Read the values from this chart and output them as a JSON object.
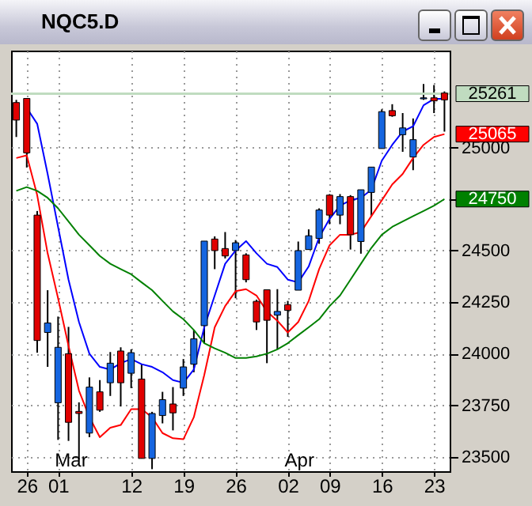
{
  "chart_data": {
    "type": "candlestick",
    "title": "NQC5.D",
    "categories": [
      null,
      "26",
      null,
      null,
      "01",
      null,
      null,
      null,
      null,
      null,
      null,
      "12",
      null,
      null,
      null,
      null,
      "19",
      null,
      null,
      null,
      null,
      "26",
      null,
      null,
      null,
      null,
      "02",
      null,
      null,
      null,
      "09",
      null,
      null,
      null,
      null,
      "16",
      null,
      null,
      null,
      null,
      "23",
      null
    ],
    "ohlc": [
      [
        25218,
        25231,
        25051,
        25133
      ],
      [
        25238,
        25238,
        24903,
        24974
      ],
      [
        24672,
        24692,
        24005,
        24064
      ],
      [
        24103,
        24308,
        23936,
        24149
      ],
      [
        23762,
        24180,
        23582,
        24031
      ],
      [
        24000,
        24130,
        23577,
        23667
      ],
      [
        23720,
        23764,
        23487,
        23710
      ],
      [
        23615,
        23885,
        23595,
        23838
      ],
      [
        23815,
        23872,
        23718,
        23726
      ],
      [
        23859,
        24008,
        23795,
        23954
      ],
      [
        24013,
        24031,
        23744,
        23859
      ],
      [
        23905,
        24021,
        23833,
        24005
      ],
      [
        23877,
        23949,
        23492,
        23492
      ],
      [
        23492,
        23718,
        23440,
        23710
      ],
      [
        23700,
        23815,
        23662,
        23777
      ],
      [
        23756,
        23838,
        23628,
        23713
      ],
      [
        23833,
        23974,
        23795,
        23936
      ],
      [
        23949,
        24115,
        23910,
        24072
      ],
      [
        24136,
        24546,
        24051,
        24546
      ],
      [
        24556,
        24569,
        24410,
        24500
      ],
      [
        24510,
        24590,
        24462,
        24474
      ],
      [
        24500,
        24551,
        24269,
        24538
      ],
      [
        24479,
        24487,
        24346,
        24359
      ],
      [
        24254,
        24262,
        24115,
        24154
      ],
      [
        24310,
        24310,
        23954,
        24162
      ],
      [
        24187,
        24313,
        24021,
        24205
      ],
      [
        24238,
        24256,
        24082,
        24210
      ],
      [
        24308,
        24544,
        24308,
        24500
      ],
      [
        24505,
        24603,
        24505,
        24572
      ],
      [
        24559,
        24705,
        24533,
        24697
      ],
      [
        24769,
        24774,
        24628,
        24672
      ],
      [
        24672,
        24774,
        24628,
        24762
      ],
      [
        24762,
        24769,
        24505,
        24577
      ],
      [
        24544,
        24795,
        24485,
        24795
      ],
      [
        24782,
        24905,
        24667,
        24905
      ],
      [
        24995,
        25185,
        24995,
        25174
      ],
      [
        25179,
        25210,
        25149,
        25154
      ],
      [
        25062,
        25167,
        24979,
        25095
      ],
      [
        24954,
        25141,
        24890,
        25038
      ],
      [
        25236,
        25308,
        25231,
        25241
      ],
      [
        25241,
        25303,
        25167,
        25226
      ],
      [
        25264,
        25272,
        25077,
        25231
      ]
    ],
    "series": [
      {
        "type": "line",
        "color": "#0000ff",
        "values": [
          null,
          25192,
          25115,
          24872,
          24615,
          24359,
          24154,
          24000,
          23936,
          23923,
          23954,
          23974,
          23949,
          23936,
          23910,
          23872,
          23859,
          23923,
          24128,
          24282,
          24436,
          24500,
          24546,
          24487,
          24436,
          24420,
          24359,
          24346,
          24423,
          24564,
          24654,
          24718,
          24744,
          24756,
          24795,
          24936,
          25013,
          25077,
          25103,
          25205,
          25236,
          25236
        ]
      },
      {
        "type": "line",
        "color": "#ff0000",
        "values": [
          24949,
          24962,
          24769,
          24487,
          24269,
          24038,
          23821,
          23692,
          23595,
          23641,
          23654,
          23731,
          23731,
          23692,
          23615,
          23590,
          23585,
          23692,
          23897,
          24128,
          24231,
          24303,
          24313,
          24282,
          24205,
          24160,
          24103,
          24154,
          24256,
          24410,
          24526,
          24577,
          24577,
          24590,
          24667,
          24744,
          24821,
          24872,
          24949,
          25013,
          25051,
          25065
        ],
        "value_labels": [
          null,
          null,
          null,
          null,
          null,
          null,
          null,
          null,
          null,
          null,
          null,
          null,
          null,
          null,
          null,
          null,
          null,
          null,
          null,
          null,
          null,
          null,
          null,
          null,
          null,
          null,
          null,
          null,
          null,
          null,
          null,
          null,
          null,
          null,
          null,
          null,
          null,
          null,
          null,
          null,
          null,
          "25065"
        ]
      },
      {
        "type": "line",
        "color": "#008000",
        "values": [
          24790,
          24808,
          24790,
          24756,
          24705,
          24641,
          24577,
          24526,
          24474,
          24436,
          24410,
          24385,
          24346,
          24308,
          24256,
          24205,
          24167,
          24115,
          24051,
          24026,
          24005,
          23979,
          23979,
          23987,
          24000,
          24021,
          24051,
          24090,
          24128,
          24167,
          24231,
          24282,
          24359,
          24436,
          24513,
          24577,
          24615,
          24641,
          24667,
          24692,
          24718,
          24750
        ],
        "value_labels": [
          null,
          null,
          null,
          null,
          null,
          null,
          null,
          null,
          null,
          null,
          null,
          null,
          null,
          null,
          null,
          null,
          null,
          null,
          null,
          null,
          null,
          null,
          null,
          null,
          null,
          null,
          null,
          null,
          null,
          null,
          null,
          null,
          null,
          null,
          null,
          null,
          null,
          null,
          null,
          null,
          null,
          "24750"
        ]
      }
    ],
    "ylim": [
      23430,
      25470
    ],
    "yticks": [
      23500,
      23750,
      24000,
      24250,
      24500,
      {
        "value": 24750,
        "label": null
      },
      25000
    ],
    "ref_lines": [
      {
        "axis": "y",
        "value": 25261,
        "label": "25261",
        "color": "#c0dcc0"
      }
    ],
    "annotations": [
      "Mar",
      "Apr"
    ],
    "grid": true,
    "marker": "none",
    "line_style": "solid"
  }
}
